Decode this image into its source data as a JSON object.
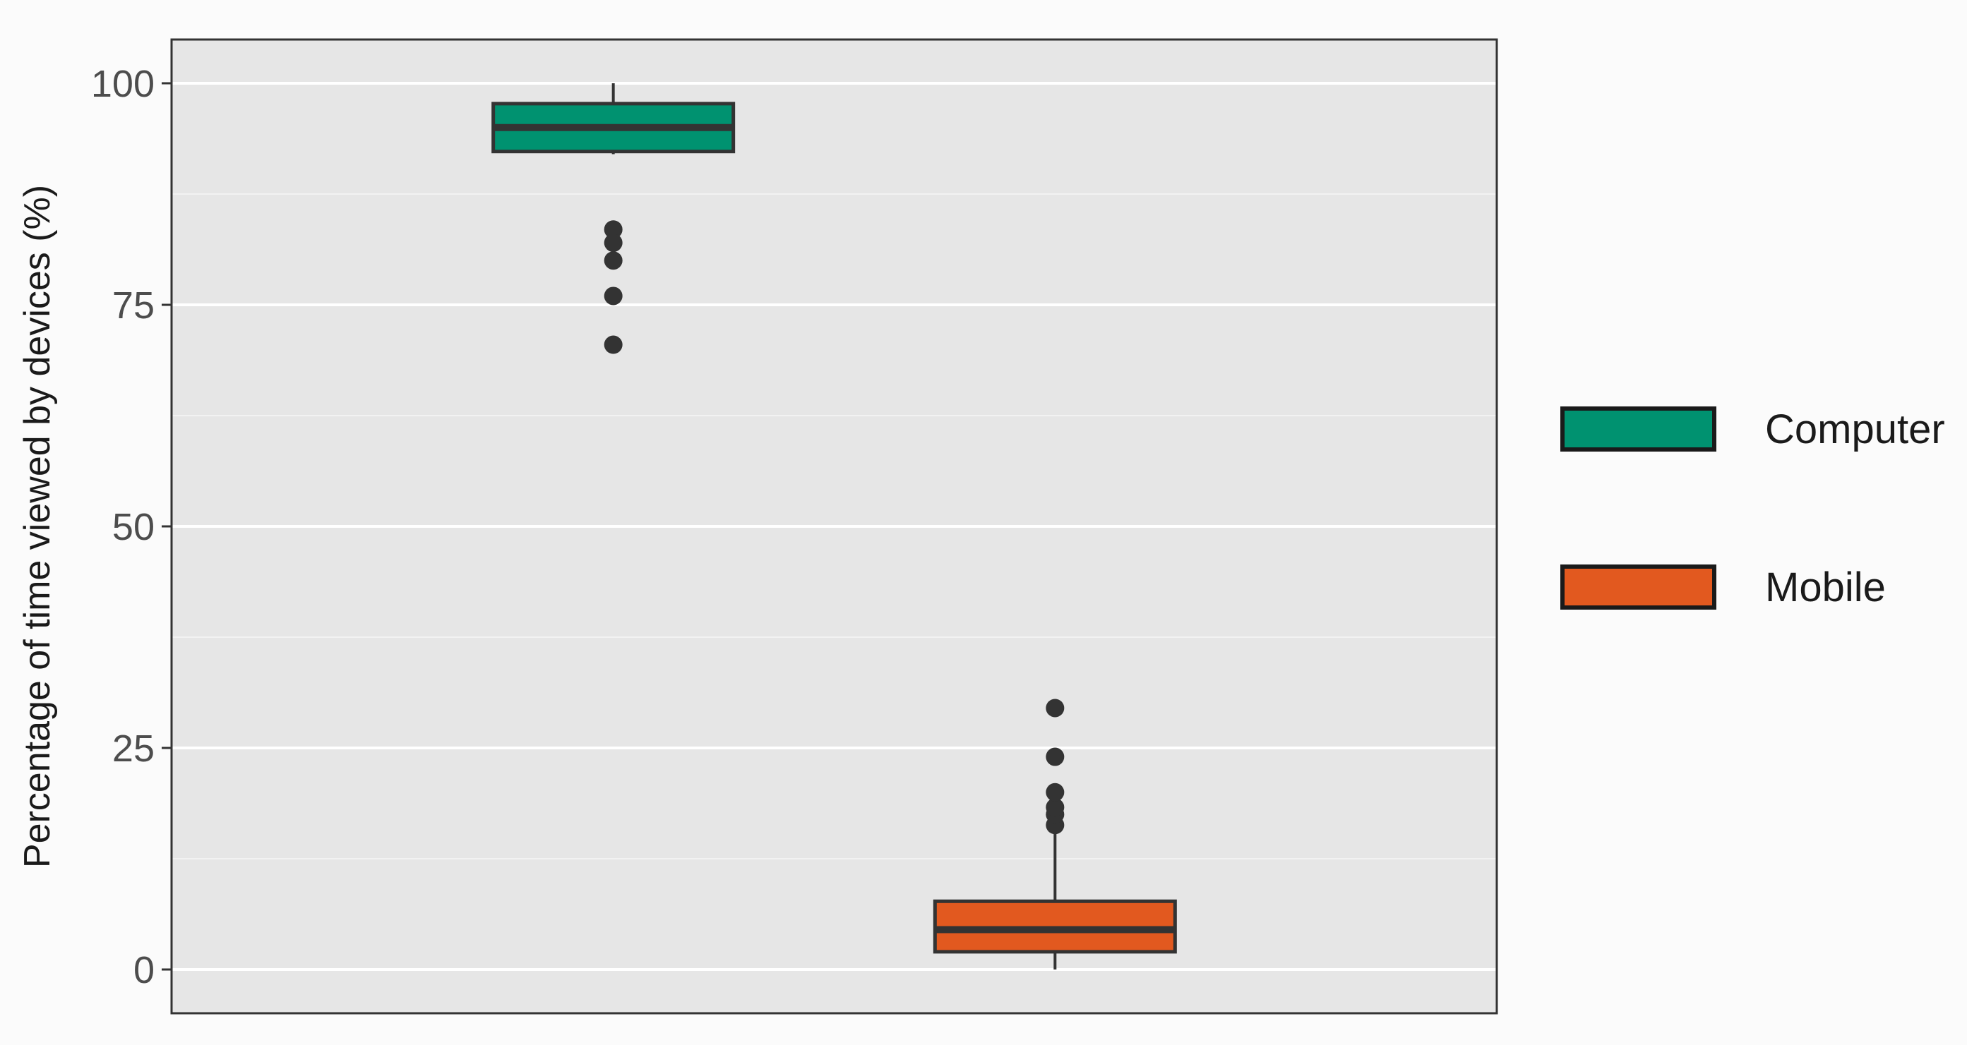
{
  "chart_data": {
    "type": "boxplot",
    "title": "",
    "xlabel": "",
    "ylabel": "Percentage of time viewed by devices (%)",
    "ylim": [
      -2.5,
      105
    ],
    "yticks": [
      0,
      25,
      50,
      75,
      100
    ],
    "grid": true,
    "legend_position": "right",
    "series": [
      {
        "name": "Computer",
        "color": "#009270",
        "min": 92,
        "q1": 92.3,
        "median": 95,
        "q3": 97.7,
        "max": 100,
        "outliers": [
          83.5,
          82,
          80,
          76,
          70.5
        ]
      },
      {
        "name": "Mobile",
        "color": "#e2591f",
        "min": 0,
        "q1": 2,
        "median": 4.5,
        "q3": 7.7,
        "max": 15.5,
        "outliers": [
          16.3,
          17.5,
          18.3,
          20,
          24,
          29.5
        ]
      }
    ]
  }
}
